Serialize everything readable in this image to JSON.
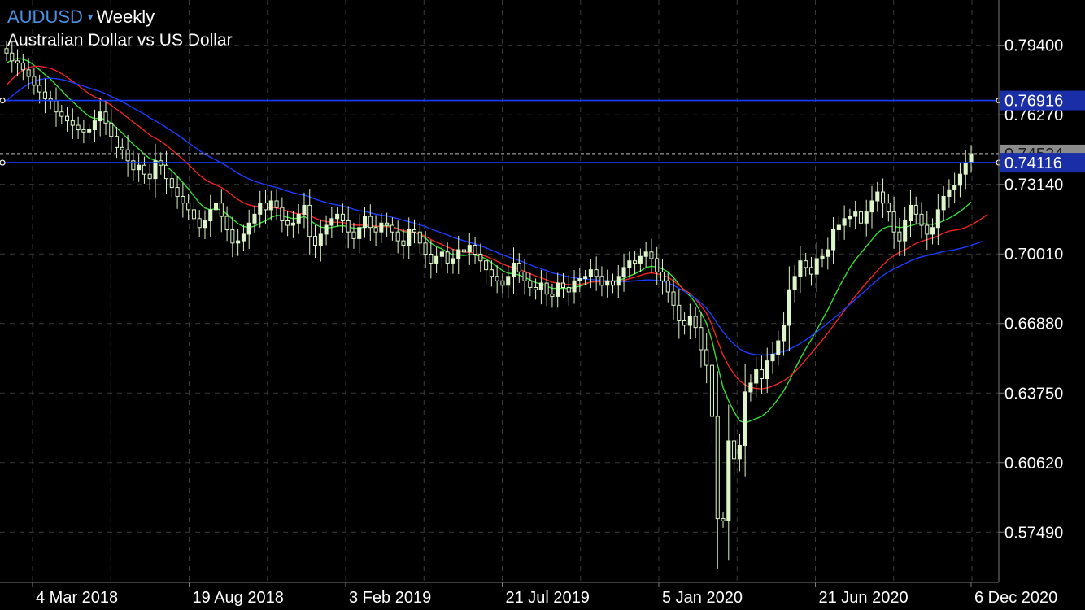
{
  "header": {
    "symbol": "AUDUSD",
    "caret": "▾",
    "timeframe": "Weekly",
    "subtitle": "Australian Dollar vs US Dollar"
  },
  "colors": {
    "background": "#000000",
    "grid": "#3a3a3a",
    "frame": "#7a7a7a",
    "candle_up": "#ddf5c8",
    "candle_down": "#ddf5c8",
    "candle_body_bear": "#000000",
    "ma_fast": "#33dd33",
    "ma_mid": "#ee2222",
    "ma_slow": "#1a3cff",
    "hline": "#1a3cff",
    "hline_label_bg": "#1a2ea8",
    "current_price_bg": "#8c8c8c"
  },
  "chart_data": {
    "type": "candlestick",
    "symbol": "AUDUSD",
    "timeframe": "Weekly",
    "title": "Australian Dollar vs US Dollar",
    "ylim": [
      0.5523,
      0.8144
    ],
    "y_ticks": [
      "0.79400",
      "0.76270",
      "0.73140",
      "0.70010",
      "0.66880",
      "0.63750",
      "0.60620",
      "0.57490"
    ],
    "x_ticks": [
      "4 Mar 2018",
      "19 Aug 2018",
      "3 Feb 2019",
      "21 Jul 2019",
      "5 Jan 2020",
      "21 Jun 2020",
      "6 Dec 2020"
    ],
    "horizontal_lines": [
      {
        "label": "0.76916",
        "value": 0.76916
      },
      {
        "label": "0.74116",
        "value": 0.74116
      }
    ],
    "current_price": {
      "label": "0.74524",
      "value": 0.74524
    },
    "grid": true,
    "close": [
      0.7905,
      0.787,
      0.786,
      0.783,
      0.78,
      0.776,
      0.773,
      0.77,
      0.769,
      0.764,
      0.762,
      0.76,
      0.758,
      0.756,
      0.755,
      0.756,
      0.76,
      0.764,
      0.759,
      0.753,
      0.748,
      0.747,
      0.742,
      0.738,
      0.74,
      0.736,
      0.734,
      0.742,
      0.74,
      0.734,
      0.73,
      0.726,
      0.723,
      0.72,
      0.716,
      0.712,
      0.715,
      0.72,
      0.723,
      0.717,
      0.711,
      0.705,
      0.706,
      0.709,
      0.714,
      0.718,
      0.723,
      0.72,
      0.724,
      0.721,
      0.715,
      0.713,
      0.714,
      0.718,
      0.722,
      0.708,
      0.704,
      0.709,
      0.713,
      0.716,
      0.718,
      0.715,
      0.71,
      0.707,
      0.712,
      0.717,
      0.712,
      0.71,
      0.714,
      0.713,
      0.71,
      0.706,
      0.704,
      0.711,
      0.71,
      0.705,
      0.7,
      0.696,
      0.699,
      0.701,
      0.696,
      0.698,
      0.702,
      0.701,
      0.704,
      0.7,
      0.697,
      0.693,
      0.69,
      0.688,
      0.686,
      0.69,
      0.696,
      0.692,
      0.688,
      0.685,
      0.684,
      0.687,
      0.682,
      0.681,
      0.687,
      0.685,
      0.683,
      0.688,
      0.689,
      0.69,
      0.693,
      0.69,
      0.686,
      0.688,
      0.686,
      0.69,
      0.694,
      0.697,
      0.696,
      0.699,
      0.701,
      0.698,
      0.692,
      0.688,
      0.683,
      0.677,
      0.67,
      0.668,
      0.672,
      0.667,
      0.657,
      0.65,
      0.627,
      0.581,
      0.58,
      0.616,
      0.608,
      0.614,
      0.638,
      0.642,
      0.648,
      0.644,
      0.652,
      0.655,
      0.661,
      0.668,
      0.684,
      0.69,
      0.697,
      0.694,
      0.691,
      0.698,
      0.699,
      0.702,
      0.711,
      0.713,
      0.716,
      0.717,
      0.719,
      0.714,
      0.719,
      0.724,
      0.728,
      0.723,
      0.719,
      0.71,
      0.706,
      0.715,
      0.722,
      0.718,
      0.713,
      0.709,
      0.712,
      0.72,
      0.726,
      0.729,
      0.731,
      0.736,
      0.741,
      0.7452
    ],
    "moving_averages": [
      {
        "color": "#33dd33",
        "values": [
          0.786,
          0.7875,
          0.788,
          0.7878,
          0.7868,
          0.785,
          0.783,
          0.7808,
          0.7788,
          0.7762,
          0.7736,
          0.771,
          0.7686,
          0.7664,
          0.764,
          0.762,
          0.761,
          0.7612,
          0.7605,
          0.759,
          0.7568,
          0.7546,
          0.752,
          0.7494,
          0.7474,
          0.745,
          0.743,
          0.7422,
          0.7412,
          0.7395,
          0.7375,
          0.735,
          0.7322,
          0.7294,
          0.7262,
          0.723,
          0.7208,
          0.72,
          0.7205,
          0.7198,
          0.718,
          0.7158,
          0.7138,
          0.7124,
          0.712,
          0.7126,
          0.714,
          0.715,
          0.7165,
          0.7175,
          0.7172,
          0.7166,
          0.716,
          0.7162,
          0.717,
          0.7155,
          0.7135,
          0.7122,
          0.7118,
          0.712,
          0.7126,
          0.7128,
          0.7124,
          0.7116,
          0.7116,
          0.7124,
          0.7126,
          0.7124,
          0.7126,
          0.7128,
          0.7124,
          0.7114,
          0.7102,
          0.71,
          0.7098,
          0.7088,
          0.7072,
          0.705,
          0.7034,
          0.7024,
          0.7008,
          0.6998,
          0.6996,
          0.6994,
          0.6998,
          0.6996,
          0.699,
          0.6978,
          0.6962,
          0.6944,
          0.6926,
          0.6914,
          0.6912,
          0.6906,
          0.6896,
          0.6884,
          0.6872,
          0.6866,
          0.6856,
          0.6846,
          0.6846,
          0.6846,
          0.6846,
          0.685,
          0.6856,
          0.6864,
          0.6876,
          0.688,
          0.688,
          0.688,
          0.6878,
          0.6882,
          0.689,
          0.6902,
          0.6912,
          0.6924,
          0.694,
          0.6946,
          0.6942,
          0.6934,
          0.692,
          0.6896,
          0.6864,
          0.6834,
          0.6812,
          0.678,
          0.6736,
          0.6688,
          0.661,
          0.65,
          0.64,
          0.634,
          0.629,
          0.625,
          0.624,
          0.625,
          0.626,
          0.627,
          0.629,
          0.6315,
          0.635,
          0.6385,
          0.643,
          0.648,
          0.653,
          0.6575,
          0.6615,
          0.666,
          0.6705,
          0.675,
          0.68,
          0.685,
          0.6895,
          0.694,
          0.6975,
          0.7005,
          0.7035,
          0.7065,
          0.7095,
          0.7115,
          0.7125,
          0.7125,
          0.712,
          0.7122,
          0.7128,
          0.7135,
          0.7138,
          0.7136,
          0.7134,
          0.714,
          0.715,
          0.7162,
          0.7176,
          0.7192,
          0.7212,
          0.7235
        ]
      },
      {
        "color": "#ee2222",
        "values": [
          0.776,
          0.7788,
          0.781,
          0.7828,
          0.784,
          0.7846,
          0.7846,
          0.7842,
          0.7836,
          0.7826,
          0.7812,
          0.7796,
          0.7778,
          0.776,
          0.774,
          0.7722,
          0.7708,
          0.7698,
          0.7686,
          0.767,
          0.7652,
          0.7634,
          0.7614,
          0.7594,
          0.7576,
          0.7556,
          0.7536,
          0.7522,
          0.7508,
          0.749,
          0.747,
          0.7448,
          0.7426,
          0.7404,
          0.738,
          0.7356,
          0.7336,
          0.7322,
          0.7312,
          0.73,
          0.7284,
          0.7264,
          0.7246,
          0.7232,
          0.7222,
          0.7216,
          0.7214,
          0.721,
          0.721,
          0.7208,
          0.7202,
          0.7194,
          0.7186,
          0.7182,
          0.7182,
          0.7174,
          0.7162,
          0.7152,
          0.7146,
          0.7144,
          0.7144,
          0.7142,
          0.7138,
          0.7132,
          0.713,
          0.7132,
          0.713,
          0.7126,
          0.7124,
          0.7124,
          0.712,
          0.7114,
          0.7106,
          0.7102,
          0.7098,
          0.709,
          0.708,
          0.7066,
          0.7054,
          0.7044,
          0.7032,
          0.7022,
          0.7016,
          0.701,
          0.7008,
          0.7004,
          0.6998,
          0.699,
          0.698,
          0.6968,
          0.6956,
          0.6946,
          0.694,
          0.6932,
          0.6922,
          0.6912,
          0.6902,
          0.6894,
          0.6884,
          0.6874,
          0.687,
          0.6866,
          0.6862,
          0.6862,
          0.6864,
          0.6868,
          0.6874,
          0.6876,
          0.6876,
          0.6878,
          0.6876,
          0.6878,
          0.6882,
          0.689,
          0.6896,
          0.6904,
          0.6912,
          0.6916,
          0.6912,
          0.6906,
          0.6896,
          0.688,
          0.686,
          0.684,
          0.6822,
          0.6798,
          0.6768,
          0.6734,
          0.668,
          0.661,
          0.6545,
          0.6498,
          0.646,
          0.643,
          0.6412,
          0.64,
          0.6396,
          0.6394,
          0.6398,
          0.6406,
          0.6418,
          0.643,
          0.6448,
          0.647,
          0.6496,
          0.6524,
          0.6554,
          0.6584,
          0.6614,
          0.6645,
          0.6678,
          0.6712,
          0.6746,
          0.678,
          0.6812,
          0.6842,
          0.687,
          0.6898,
          0.6926,
          0.6952,
          0.6975,
          0.6994,
          0.7008,
          0.702,
          0.7034,
          0.7048,
          0.7058,
          0.7066,
          0.7072,
          0.7082,
          0.7094,
          0.7104,
          0.7108,
          0.7112,
          0.712,
          0.7132,
          0.7146,
          0.7162,
          0.718
        ]
      },
      {
        "color": "#1a3cff",
        "values": [
          0.769,
          0.7712,
          0.7732,
          0.775,
          0.7766,
          0.7778,
          0.7786,
          0.779,
          0.7792,
          0.779,
          0.7786,
          0.778,
          0.7772,
          0.7764,
          0.7756,
          0.7748,
          0.774,
          0.7732,
          0.7722,
          0.771,
          0.7698,
          0.7686,
          0.7672,
          0.7658,
          0.7644,
          0.763,
          0.7614,
          0.76,
          0.7586,
          0.757,
          0.7554,
          0.7538,
          0.752,
          0.7502,
          0.7484,
          0.7466,
          0.745,
          0.7436,
          0.7424,
          0.741,
          0.7396,
          0.738,
          0.7364,
          0.735,
          0.7338,
          0.7328,
          0.732,
          0.7312,
          0.7306,
          0.73,
          0.7292,
          0.7284,
          0.7276,
          0.727,
          0.7266,
          0.7258,
          0.7248,
          0.724,
          0.7232,
          0.7226,
          0.7222,
          0.7216,
          0.721,
          0.7202,
          0.7196,
          0.7192,
          0.7186,
          0.718,
          0.7176,
          0.7172,
          0.7166,
          0.716,
          0.7152,
          0.7146,
          0.714,
          0.7132,
          0.7124,
          0.7114,
          0.7104,
          0.7096,
          0.7086,
          0.7076,
          0.7068,
          0.706,
          0.7054,
          0.7046,
          0.7038,
          0.7028,
          0.7018,
          0.7008,
          0.6998,
          0.6988,
          0.698,
          0.6972,
          0.6962,
          0.6952,
          0.6942,
          0.6934,
          0.6926,
          0.6916,
          0.691,
          0.6904,
          0.6898,
          0.6894,
          0.689,
          0.6888,
          0.6886,
          0.6884,
          0.6882,
          0.688,
          0.6878,
          0.6876,
          0.6876,
          0.6878,
          0.688,
          0.6882,
          0.6884,
          0.6884,
          0.6882,
          0.6878,
          0.687,
          0.686,
          0.6846,
          0.6832,
          0.6818,
          0.68,
          0.678,
          0.6756,
          0.6724,
          0.6686,
          0.665,
          0.662,
          0.6594,
          0.6574,
          0.656,
          0.6552,
          0.6548,
          0.6546,
          0.6546,
          0.655,
          0.6556,
          0.6562,
          0.6572,
          0.6584,
          0.6598,
          0.6614,
          0.6632,
          0.665,
          0.667,
          0.669,
          0.671,
          0.673,
          0.6752,
          0.6774,
          0.6796,
          0.6818,
          0.684,
          0.6862,
          0.6884,
          0.6904,
          0.692,
          0.6934,
          0.6946,
          0.6958,
          0.697,
          0.698,
          0.6988,
          0.6994,
          0.7,
          0.7006,
          0.7012,
          0.7016,
          0.702,
          0.7026,
          0.7032,
          0.704,
          0.7048,
          0.7058
        ]
      }
    ]
  }
}
